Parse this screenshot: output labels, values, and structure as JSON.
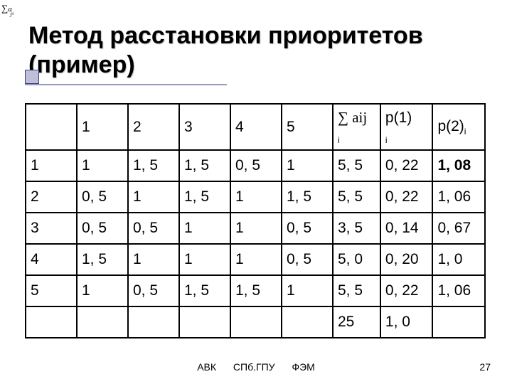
{
  "corner_formula": {
    "sigma": "∑",
    "ai": "a",
    "aisub": "ᵢⱼ",
    "jsub": "j"
  },
  "title": "Метод расстановки приоритетов (пример)",
  "table": {
    "header_row": [
      "",
      "1",
      "2",
      "3",
      "4",
      "5",
      "∑ aij",
      "p(1)",
      "p(2)"
    ],
    "header_sub_i": "i",
    "rows": [
      [
        "1",
        "1",
        "1, 5",
        "1, 5",
        "0, 5",
        "1",
        "5, 5",
        "0, 22",
        "1, 08"
      ],
      [
        "2",
        "0, 5",
        "1",
        "1, 5",
        "1",
        "1, 5",
        "5, 5",
        "0, 22",
        "1, 06"
      ],
      [
        "3",
        "0, 5",
        "0, 5",
        "1",
        "1",
        "0, 5",
        "3, 5",
        "0, 14",
        "0, 67"
      ],
      [
        "4",
        "1, 5",
        "1",
        "1",
        "1",
        "0, 5",
        "5, 0",
        "0, 20",
        "1, 0"
      ],
      [
        "5",
        "1",
        "0, 5",
        "1, 5",
        "1, 5",
        "1",
        "5, 5",
        "0, 22",
        "1, 06"
      ]
    ],
    "sum_row": [
      "",
      "",
      "",
      "",
      "",
      "",
      "25",
      "1, 0",
      ""
    ],
    "bold_cell": {
      "row": 0,
      "col": 8
    }
  },
  "footer": {
    "a": "АВК",
    "b": "СПб.ГПУ",
    "c": "ФЭМ"
  },
  "page_number": "27",
  "colors": {
    "title_accent": "#333399",
    "underline": "#9898c2"
  }
}
